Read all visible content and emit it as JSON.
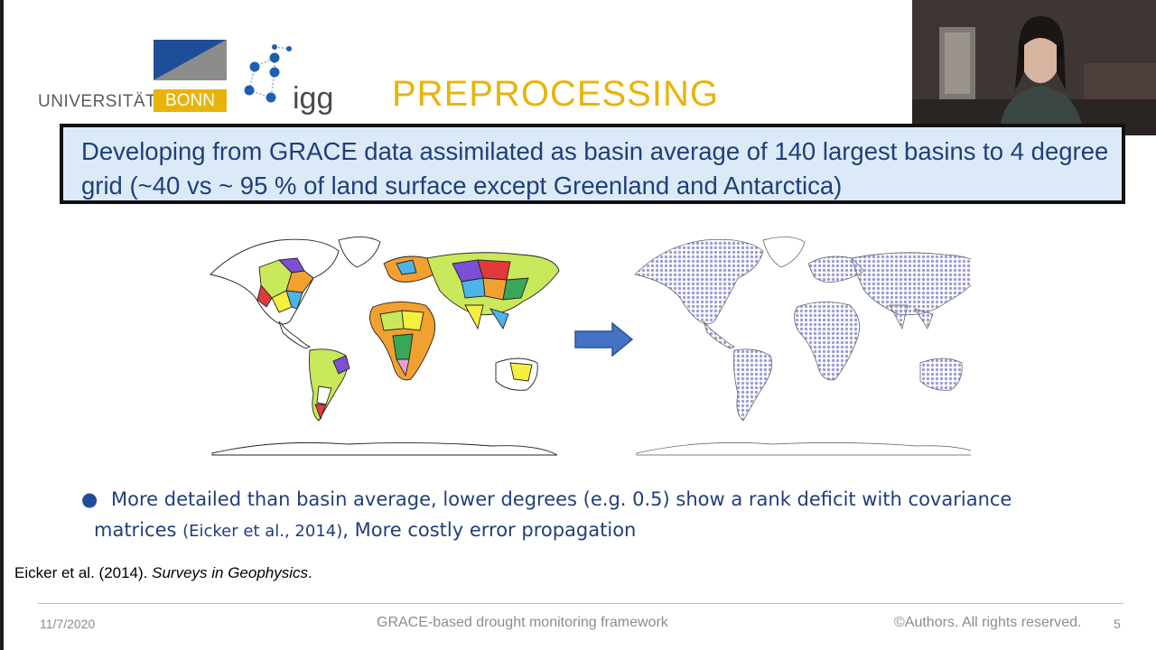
{
  "slide": {
    "title": "PREPROCESSING",
    "highlight_text": "Developing from GRACE data assimilated as basin average of 140 largest basins to 4 degree grid (~40 vs ~ 95 % of land surface except Greenland and Antarctica)",
    "bullet": {
      "part1": "More detailed than basin average, lower degrees (e.g. 0.5) show a rank deficit with covariance",
      "part2_prefix": "matrices ",
      "citation": "(Eicker et al., 2014)",
      "part2_suffix": ", More costly error propagation"
    },
    "reference": {
      "authors": "Eicker et al. (2014). ",
      "journal": "Surveys in Geophysics",
      "end": "."
    }
  },
  "logos": {
    "bonn_text": "UNIVERSITÄT",
    "bonn_box": "BONN",
    "igg": "igg"
  },
  "footer": {
    "date": "11/7/2020",
    "center": "GRACE-based drought monitoring framework",
    "rights": "©Authors. All rights reserved.",
    "page": "5"
  },
  "colors": {
    "title": "#e8b40a",
    "text_blue": "#1f3f7a",
    "box_fill": "#dbeaf6",
    "arrow": "#4472c4"
  },
  "icons": [
    "right-arrow-icon"
  ]
}
